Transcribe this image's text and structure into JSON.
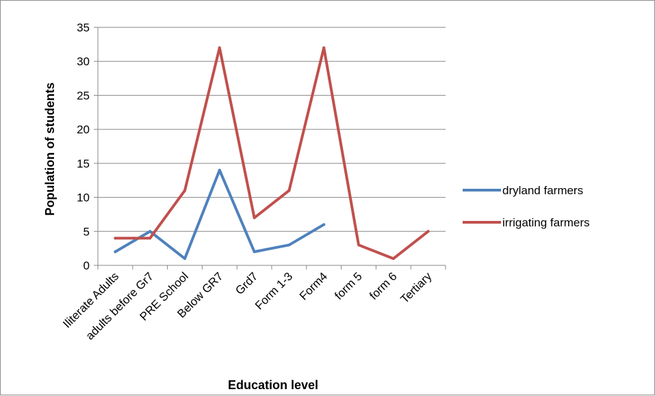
{
  "chart_data": {
    "type": "line",
    "xlabel": "Education level",
    "ylabel": "Population of students",
    "ylim": [
      0,
      35
    ],
    "ytick_step": 5,
    "grid": true,
    "legend_position": "right",
    "categories": [
      "Iliterate Adults",
      "adults before Gr7",
      "PRE School",
      "Below GR7",
      "Grd7",
      "Form 1-3",
      "Form4",
      "form 5",
      "form 6",
      "Tertiary"
    ],
    "series": [
      {
        "name": "dryland farmers",
        "color": "#4f81bd",
        "values": [
          2,
          5,
          1,
          14,
          2,
          3,
          6,
          null,
          null,
          null
        ]
      },
      {
        "name": "irrigating farmers",
        "color": "#c0504d",
        "values": [
          4,
          4,
          11,
          32,
          7,
          11,
          32,
          3,
          1,
          5
        ]
      }
    ]
  }
}
